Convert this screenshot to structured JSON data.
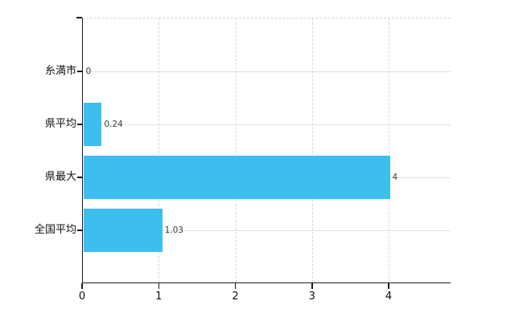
{
  "chart_data": {
    "type": "bar",
    "orientation": "horizontal",
    "title": "",
    "categories": [
      "糸満市",
      "県平均",
      "県最大",
      "全国平均"
    ],
    "values": [
      0,
      0.24,
      4,
      1.03
    ],
    "value_labels": [
      "0",
      "0.24",
      "4",
      "1.03"
    ],
    "x_tick_labels": [
      "0",
      "1",
      "2",
      "3",
      "4"
    ],
    "x_tick_values": [
      0,
      1,
      2,
      3,
      4
    ],
    "xlim": [
      0,
      4.8
    ],
    "grid": true,
    "legend_position": "none",
    "colors": {
      "bar": "#3ebdef",
      "axis": "#1a1a1a",
      "grid_horizontal": "#dce3da",
      "grid_vertical": "#d9d9d9",
      "plot_top_border": "#d5d5d5",
      "value_label": "#3c3c3c",
      "tick_label": "#111111"
    }
  }
}
